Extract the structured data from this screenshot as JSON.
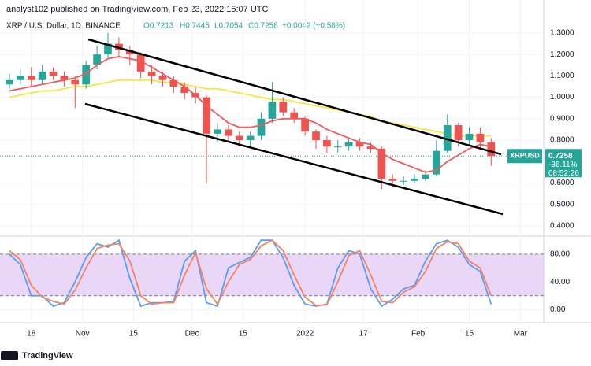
{
  "header": {
    "publisher": "analyst102 published on TradingView.com, Feb 23, 2022 15:07 UTC",
    "symbol": "XRP / U.S. Dollar, 1D, BINANCE",
    "open": "O0.7213",
    "high": "H0.7445",
    "low": "L0.7054",
    "close": "C0.7258",
    "change": "+0.0042 (+0.58%)"
  },
  "price_tag": {
    "ticker": "XRPUSD",
    "change": "-36.11%",
    "countdown": "08:52:26"
  },
  "footer": {
    "brand": "TradingView"
  },
  "chart_data": [
    {
      "type": "candlestick",
      "up_color": "#26a69a",
      "down_color": "#ef5350",
      "open": [
        1.06,
        1.08,
        1.1,
        1.08,
        1.12,
        1.1,
        1.08,
        1.06,
        1.15,
        1.2,
        1.25,
        1.22,
        1.2,
        1.12,
        1.1,
        1.08,
        1.05,
        1.02,
        1.0,
        0.83,
        0.85,
        0.82,
        0.8,
        0.82,
        0.9,
        0.98,
        0.93,
        0.9,
        0.84,
        0.8,
        0.77,
        0.77,
        0.79,
        0.77,
        0.76,
        0.62,
        0.61,
        0.61,
        0.62,
        0.64,
        0.75,
        0.87,
        0.8,
        0.83,
        0.79
      ],
      "high": [
        1.11,
        1.13,
        1.14,
        1.15,
        1.14,
        1.12,
        1.1,
        1.17,
        1.24,
        1.3,
        1.28,
        1.24,
        1.21,
        1.15,
        1.12,
        1.1,
        1.07,
        1.05,
        1.01,
        0.88,
        0.87,
        0.84,
        0.84,
        0.93,
        1.07,
        1.0,
        0.95,
        0.91,
        0.85,
        0.82,
        0.8,
        0.81,
        0.81,
        0.79,
        0.77,
        0.64,
        0.63,
        0.64,
        0.66,
        0.8,
        0.92,
        0.88,
        0.86,
        0.86,
        0.81
      ],
      "low": [
        1.04,
        1.06,
        1.05,
        1.06,
        1.08,
        1.05,
        0.95,
        1.04,
        1.13,
        1.18,
        1.19,
        1.15,
        1.09,
        1.06,
        1.05,
        1.02,
        0.99,
        0.97,
        0.6,
        0.79,
        0.79,
        0.77,
        0.77,
        0.8,
        0.88,
        0.91,
        0.88,
        0.82,
        0.76,
        0.74,
        0.74,
        0.75,
        0.75,
        0.74,
        0.57,
        0.58,
        0.59,
        0.6,
        0.61,
        0.63,
        0.74,
        0.77,
        0.78,
        0.76,
        0.68
      ],
      "close": [
        1.08,
        1.1,
        1.08,
        1.12,
        1.1,
        1.08,
        1.06,
        1.15,
        1.2,
        1.25,
        1.22,
        1.2,
        1.12,
        1.1,
        1.08,
        1.05,
        1.02,
        1.0,
        0.83,
        0.85,
        0.82,
        0.8,
        0.82,
        0.9,
        0.98,
        0.93,
        0.9,
        0.84,
        0.8,
        0.77,
        0.77,
        0.79,
        0.77,
        0.76,
        0.62,
        0.61,
        0.61,
        0.62,
        0.64,
        0.75,
        0.87,
        0.8,
        0.83,
        0.79,
        0.7258
      ],
      "series": [
        {
          "color": "#f05a5a",
          "values": [
            1.03,
            1.04,
            1.05,
            1.06,
            1.07,
            1.08,
            1.09,
            1.11,
            1.15,
            1.18,
            1.19,
            1.18,
            1.17,
            1.14,
            1.11,
            1.08,
            1.05,
            1.01,
            0.96,
            0.92,
            0.88,
            0.86,
            0.86,
            0.87,
            0.89,
            0.9,
            0.9,
            0.9,
            0.88,
            0.85,
            0.83,
            0.81,
            0.79,
            0.78,
            0.74,
            0.71,
            0.69,
            0.67,
            0.65,
            0.66,
            0.7,
            0.73,
            0.76,
            0.78,
            0.77
          ]
        },
        {
          "color": "#f5e642",
          "values": [
            1.0,
            1.01,
            1.02,
            1.03,
            1.03,
            1.04,
            1.05,
            1.05,
            1.06,
            1.07,
            1.08,
            1.08,
            1.08,
            1.08,
            1.07,
            1.07,
            1.06,
            1.05,
            1.04,
            1.04,
            1.03,
            1.02,
            1.01,
            1.0,
            0.99,
            0.99,
            0.98,
            0.97,
            0.96,
            0.95,
            0.94,
            0.93,
            0.92,
            0.91,
            0.89,
            0.88,
            0.87,
            0.86,
            0.85,
            0.84,
            0.83,
            0.82,
            0.82,
            0.82,
            0.82
          ]
        }
      ],
      "ylim": [
        0.352,
        1.454
      ],
      "yticks": [
        {
          "value": 0.4,
          "label": "0.4000"
        },
        {
          "value": 0.5,
          "label": "0.5000"
        },
        {
          "value": 0.6,
          "label": "0.6000"
        },
        {
          "value": 0.8,
          "label": "0.8000"
        },
        {
          "value": 0.9,
          "label": "0.9000"
        },
        {
          "value": 1.0,
          "label": "1.0000"
        },
        {
          "value": 1.1,
          "label": "1.1000"
        },
        {
          "value": 1.2,
          "label": "1.2000"
        },
        {
          "value": 1.3,
          "label": "1.3000"
        }
      ],
      "xlim": [
        -0.86,
        48.8
      ],
      "xticks": [
        {
          "value": 2,
          "label": "18"
        },
        {
          "value": 6.67,
          "label": "Nov"
        },
        {
          "value": 11.33,
          "label": "15"
        },
        {
          "value": 16.67,
          "label": "Dec"
        },
        {
          "value": 21.33,
          "label": "15"
        },
        {
          "value": 27,
          "label": "2022"
        },
        {
          "value": 32.33,
          "label": "17"
        },
        {
          "value": 37.33,
          "label": "Feb"
        },
        {
          "value": 42,
          "label": "15"
        },
        {
          "value": 46.67,
          "label": "Mar"
        }
      ]
    },
    {
      "type": "line",
      "band": [
        20,
        80
      ],
      "band_color": "#e1c6f5",
      "series": [
        {
          "color": "#5b9cf6",
          "values": [
            80,
            65,
            20,
            20,
            5,
            10,
            40,
            75,
            95,
            90,
            100,
            45,
            5,
            10,
            10,
            12,
            70,
            85,
            10,
            5,
            60,
            68,
            75,
            100,
            100,
            75,
            35,
            8,
            5,
            8,
            60,
            85,
            80,
            30,
            5,
            15,
            30,
            35,
            70,
            95,
            100,
            90,
            65,
            55,
            8
          ]
        },
        {
          "color": "#f4845f",
          "values": [
            85,
            72,
            35,
            18,
            12,
            8,
            28,
            60,
            88,
            93,
            95,
            70,
            20,
            8,
            10,
            10,
            50,
            82,
            30,
            8,
            40,
            65,
            72,
            92,
            100,
            85,
            50,
            18,
            6,
            7,
            40,
            78,
            85,
            50,
            12,
            10,
            25,
            33,
            55,
            88,
            98,
            95,
            70,
            60,
            20
          ]
        }
      ],
      "ylim": [
        -18.8,
        105.9
      ],
      "yticks": [
        {
          "value": 0,
          "label": "0.00"
        },
        {
          "value": 40,
          "label": "40.00"
        },
        {
          "value": 80,
          "label": "80.00"
        }
      ]
    }
  ]
}
